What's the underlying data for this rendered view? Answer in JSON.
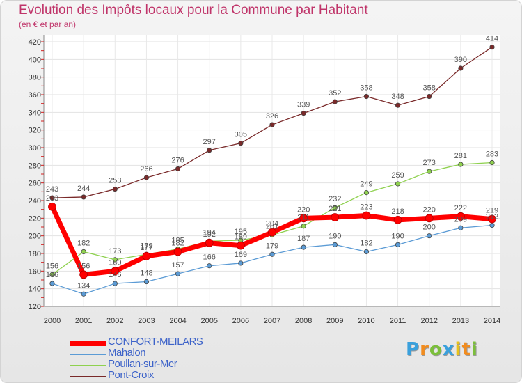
{
  "chart_data": {
    "type": "line",
    "title": "Evolution des Impôts locaux pour la Commune par Habitant",
    "subtitle": "(en € et par an)",
    "x": [
      "2000",
      "2001",
      "2002",
      "2003",
      "2004",
      "2005",
      "2006",
      "2007",
      "2008",
      "2009",
      "2010",
      "2011",
      "2012",
      "2013",
      "2014"
    ],
    "ylim": [
      120,
      420
    ],
    "yticks": [
      120,
      140,
      160,
      180,
      200,
      220,
      240,
      260,
      280,
      300,
      320,
      340,
      360,
      380,
      400,
      420
    ],
    "grid": true,
    "legend_position": "bottom-left",
    "series": [
      {
        "name": "CONFORT-MEILARS",
        "color": "#ff0000",
        "values": [
          233,
          156,
          160,
          177,
          182,
          192,
          189,
          204,
          220,
          221,
          223,
          218,
          220,
          222,
          219
        ]
      },
      {
        "name": "Mahalon",
        "color": "#5b9bd5",
        "values": [
          146,
          134,
          146,
          148,
          157,
          166,
          169,
          179,
          187,
          190,
          182,
          190,
          200,
          209,
          212
        ]
      },
      {
        "name": "Poullan-sur-Mer",
        "color": "#8fd14f",
        "values": [
          156,
          182,
          173,
          179,
          185,
          194,
          195,
          201,
          211,
          232,
          249,
          259,
          273,
          281,
          283
        ]
      },
      {
        "name": "Pont-Croix",
        "color": "#7a2a2a",
        "values": [
          243,
          244,
          253,
          266,
          276,
          297,
          305,
          326,
          339,
          352,
          358,
          348,
          358,
          390,
          414
        ]
      }
    ]
  },
  "logo": {
    "letters": [
      "P",
      "r",
      "o",
      "x",
      "i",
      "t",
      "i"
    ],
    "colors": [
      "#3aa0dc",
      "#f28c1e",
      "#7bbf3a",
      "#3aa0dc",
      "#e8c21a",
      "#f28c1e",
      "#7bbf3a"
    ]
  }
}
